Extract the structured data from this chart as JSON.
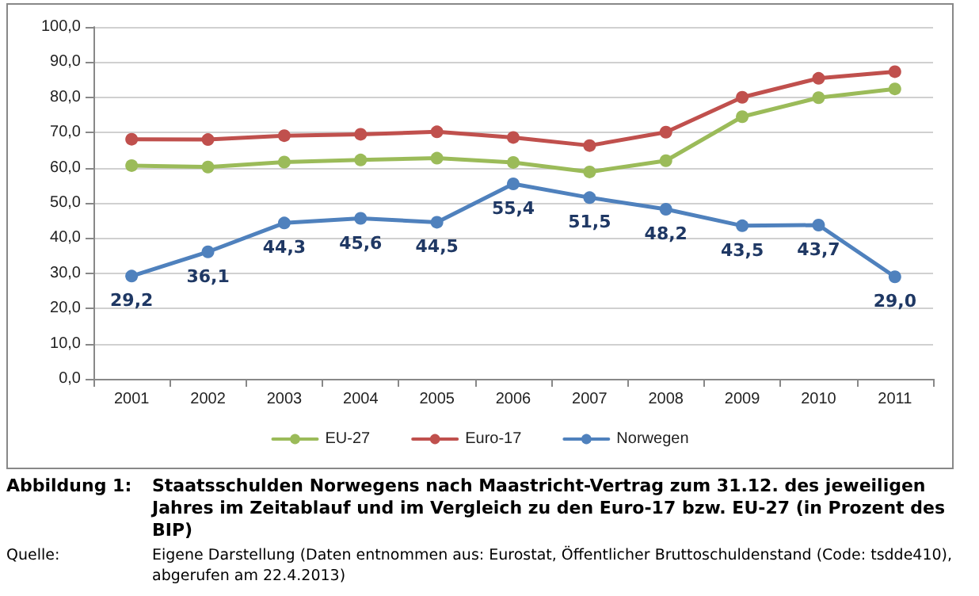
{
  "chart_data": {
    "type": "line",
    "title": "Staatsschulden Norwegens nach Maastricht-Vertrag zum 31.12. des jeweiligen Jahres im Zeitablauf und im Vergleich zu den Euro-17 bzw. EU-27 (in Prozent des BIP)",
    "annotations": [
      "Abbildung 1:",
      "Quelle:",
      "Eigene Darstellung (Daten entnommen aus: Eurostat, Öffentlicher Bruttoschuldenstand (Code: tsdde410), abgerufen am 22.4.2013)"
    ],
    "categories": [
      "2001",
      "2002",
      "2003",
      "2004",
      "2005",
      "2006",
      "2007",
      "2008",
      "2009",
      "2010",
      "2011"
    ],
    "series": [
      {
        "name": "EU-27",
        "color": "#9bbb59",
        "values": [
          60.6,
          60.2,
          61.6,
          62.2,
          62.7,
          61.5,
          58.8,
          62.0,
          74.5,
          79.9,
          82.4
        ]
      },
      {
        "name": "Euro-17",
        "color": "#c0504d",
        "values": [
          68.1,
          68.0,
          69.1,
          69.5,
          70.2,
          68.6,
          66.3,
          70.1,
          80.0,
          85.4,
          87.3
        ]
      },
      {
        "name": "Norwegen",
        "color": "#4f81bd",
        "values": [
          29.2,
          36.1,
          44.3,
          45.6,
          44.5,
          55.4,
          51.5,
          48.2,
          43.5,
          43.7,
          29.0
        ],
        "value_labels": [
          "29,2",
          "36,1",
          "44,3",
          "45,6",
          "44,5",
          "55,4",
          "51,5",
          "48,2",
          "43,5",
          "43,7",
          "29,0"
        ]
      }
    ],
    "ylim": [
      0,
      100
    ],
    "yticks": [
      {
        "value": 0,
        "label": "0,0"
      },
      {
        "value": 10,
        "label": "10,0"
      },
      {
        "value": 20,
        "label": "20,0"
      },
      {
        "value": 30,
        "label": "30,0"
      },
      {
        "value": 40,
        "label": "40,0"
      },
      {
        "value": 50,
        "label": "50,0"
      },
      {
        "value": 60,
        "label": "60,0"
      },
      {
        "value": 70,
        "label": "70,0"
      },
      {
        "value": 80,
        "label": "80,0"
      },
      {
        "value": 90,
        "label": "90,0"
      },
      {
        "value": 100,
        "label": "100,0"
      }
    ],
    "grid": "y",
    "legend": "bottom",
    "marker": "circle",
    "line_style": "solid"
  }
}
